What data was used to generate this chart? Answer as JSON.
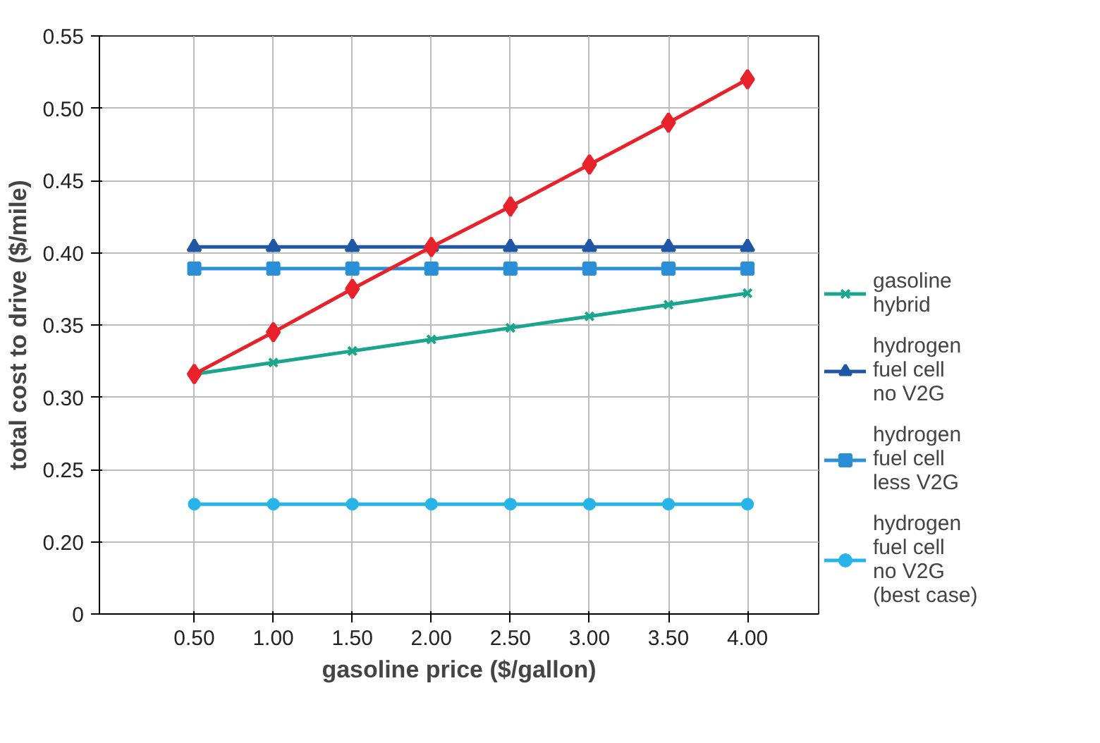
{
  "chart_data": {
    "type": "line",
    "xlabel": "gasoline price ($/gallon)",
    "ylabel": "total cost to drive ($/mile)",
    "x": [
      0.5,
      1.0,
      1.5,
      2.0,
      2.5,
      3.0,
      3.5,
      4.0
    ],
    "xlim": [
      -0.1,
      4.45
    ],
    "xticks": [
      {
        "value": 0.5,
        "label": "0.50"
      },
      {
        "value": 1.0,
        "label": "1.00"
      },
      {
        "value": 1.5,
        "label": "1.50"
      },
      {
        "value": 2.0,
        "label": "2.00"
      },
      {
        "value": 2.5,
        "label": "2.50"
      },
      {
        "value": 3.0,
        "label": "3.00"
      },
      {
        "value": 3.5,
        "label": "3.50"
      },
      {
        "value": 4.0,
        "label": "4.00"
      }
    ],
    "ylim": [
      0.15,
      0.55
    ],
    "yticks": [
      {
        "value": 0.15,
        "label": "0"
      },
      {
        "value": 0.2,
        "label": "0.20"
      },
      {
        "value": 0.25,
        "label": "0.25"
      },
      {
        "value": 0.3,
        "label": "0.30"
      },
      {
        "value": 0.35,
        "label": "0.35"
      },
      {
        "value": 0.4,
        "label": "0.40"
      },
      {
        "value": 0.45,
        "label": "0.45"
      },
      {
        "value": 0.5,
        "label": "0.50"
      },
      {
        "value": 0.55,
        "label": "0.55"
      }
    ],
    "grid": true,
    "legend": "right",
    "line_style": "solid",
    "series": [
      {
        "color": "#e8222a",
        "marker": "diamond",
        "values": [
          0.316,
          0.345,
          0.375,
          0.404,
          0.432,
          0.461,
          0.49,
          0.52
        ]
      },
      {
        "name": "gasoline hybrid",
        "color": "#1aa68e",
        "marker": "cross",
        "values": [
          0.316,
          0.324,
          0.332,
          0.34,
          0.348,
          0.356,
          0.364,
          0.372
        ]
      },
      {
        "name": "hydrogen fuel cell no V2G",
        "color": "#1f57a5",
        "marker": "triangle",
        "values": [
          0.404,
          0.404,
          0.404,
          0.404,
          0.404,
          0.404,
          0.404,
          0.404
        ]
      },
      {
        "name": "hydrogen fuel cell less V2G",
        "color": "#2a8fd6",
        "marker": "square",
        "values": [
          0.389,
          0.389,
          0.389,
          0.389,
          0.389,
          0.389,
          0.389,
          0.389
        ]
      },
      {
        "name": "hydrogen fuel cell no V2G (best case)",
        "color": "#27b4e8",
        "marker": "circle",
        "values": [
          0.226,
          0.226,
          0.226,
          0.226,
          0.226,
          0.226,
          0.226,
          0.226
        ]
      }
    ]
  }
}
